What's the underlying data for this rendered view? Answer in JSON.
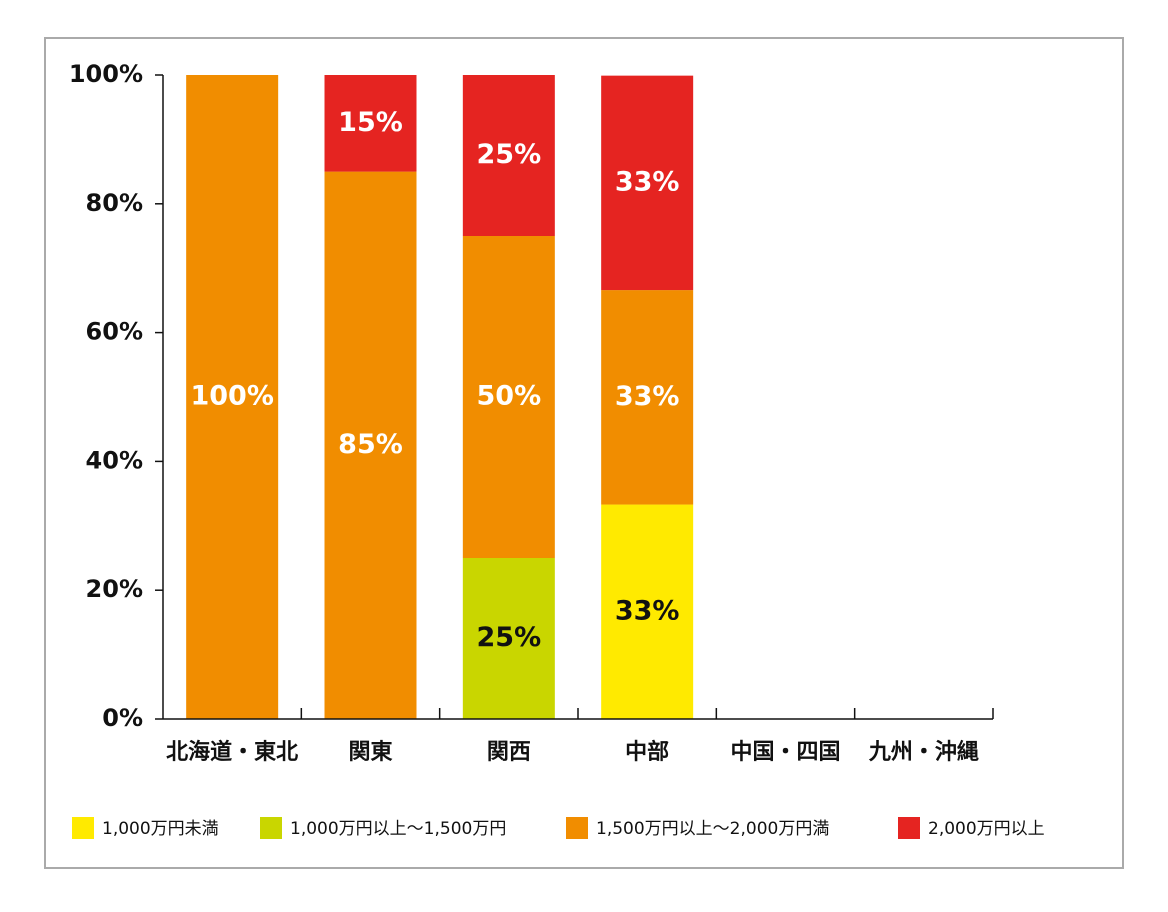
{
  "chart_data": {
    "type": "stacked_bar",
    "categories": [
      "北海道・東北",
      "関東",
      "関西",
      "中部",
      "中国・四国",
      "九州・沖縄"
    ],
    "series": [
      {
        "name": "1,000万円未満",
        "color": "#ffea00",
        "label_color": "#111111",
        "values": [
          null,
          null,
          null,
          33.3,
          null,
          null
        ],
        "value_labels": [
          null,
          null,
          null,
          "33%",
          null,
          null
        ]
      },
      {
        "name": "1,000万円以上～1,500万円",
        "color": "#c9d600",
        "label_color": "#111111",
        "values": [
          null,
          null,
          25,
          null,
          null,
          null
        ],
        "value_labels": [
          null,
          null,
          "25%",
          null,
          null,
          null
        ]
      },
      {
        "name": "1,500万円以上～2,000万円満",
        "color": "#f18d00",
        "label_color": "#ffffff",
        "values": [
          100,
          85,
          50,
          33.3,
          null,
          null
        ],
        "value_labels": [
          "100%",
          "85%",
          "50%",
          "33%",
          null,
          null
        ]
      },
      {
        "name": "2,000万円以上",
        "color": "#e52421",
        "label_color": "#ffffff",
        "values": [
          null,
          15,
          25,
          33.3,
          null,
          null
        ],
        "value_labels": [
          null,
          "15%",
          "25%",
          "33%",
          null,
          null
        ]
      }
    ],
    "ylim": [
      0,
      100
    ],
    "yticks": [
      {
        "value": 0,
        "label": "0%"
      },
      {
        "value": 20,
        "label": "20%"
      },
      {
        "value": 40,
        "label": "40%"
      },
      {
        "value": 60,
        "label": "60%"
      },
      {
        "value": 80,
        "label": "80%"
      },
      {
        "value": 100,
        "label": "100%"
      }
    ],
    "grid": false
  }
}
